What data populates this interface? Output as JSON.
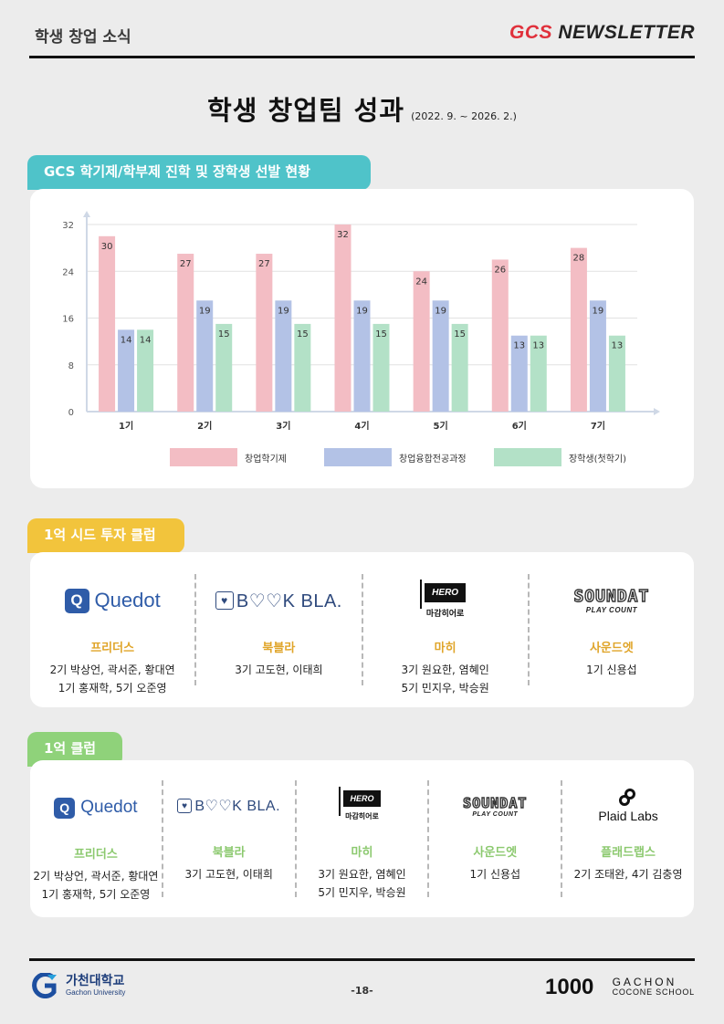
{
  "header": {
    "section": "학생 창업 소식",
    "newsletter_accent": "GCS",
    "newsletter_rest": " NEWSLETTER"
  },
  "title": {
    "main": "학생 창업팀 성과",
    "period": "(2022. 9. ~ 2026. 2.)"
  },
  "chart_section": {
    "label": "GCS 학기제/학부제 진학 및 장학생 선발 현황"
  },
  "chart_data": {
    "type": "bar",
    "categories": [
      "1기",
      "2기",
      "3기",
      "4기",
      "5기",
      "6기",
      "7기"
    ],
    "series": [
      {
        "name": "창업학기제",
        "color": "#f3bdc4",
        "values": [
          30,
          27,
          27,
          32,
          24,
          26,
          28
        ]
      },
      {
        "name": "창업융합전공과정",
        "color": "#b3c2e6",
        "values": [
          14,
          19,
          19,
          19,
          19,
          13,
          19
        ]
      },
      {
        "name": "장학생(첫학기)",
        "color": "#b3e1c7",
        "values": [
          14,
          15,
          15,
          15,
          15,
          13,
          13
        ]
      }
    ],
    "yticks": [
      0,
      8,
      16,
      24,
      32
    ],
    "ylim": [
      0,
      32
    ],
    "grid": true,
    "legend": "bottom"
  },
  "seed_club": {
    "label": "1억 시드 투자 클럽",
    "items": [
      {
        "logo": "Quedot",
        "name": "프리더스",
        "members": [
          "2기 박상언, 곽서준, 황대연",
          "1기 홍재학, 5기 오준영"
        ]
      },
      {
        "logo": "B♡♡K BLA.",
        "name": "북블라",
        "members": [
          "3기 고도현, 이태희"
        ]
      },
      {
        "logo": "HERO",
        "logo_sub": "마감히어로",
        "name": "마히",
        "members": [
          "3기 원요한, 염혜인",
          "5기 민지우, 박승원"
        ]
      },
      {
        "logo": "SOUNDAT",
        "logo_sub": "PLAY COUNT",
        "name": "사운드엣",
        "members": [
          "1기 신용섭"
        ]
      }
    ]
  },
  "club": {
    "label": "1억 클럽",
    "items": [
      {
        "logo": "Quedot",
        "name": "프리더스",
        "members": [
          "2기 박상언, 곽서준, 황대연",
          "1기 홍재학, 5기 오준영"
        ]
      },
      {
        "logo": "B♡♡K BLA.",
        "name": "북블라",
        "members": [
          "3기 고도현, 이태희"
        ]
      },
      {
        "logo": "HERO",
        "logo_sub": "마감히어로",
        "name": "마히",
        "members": [
          "3기 원요한, 염혜인",
          "5기 민지우, 박승원"
        ]
      },
      {
        "logo": "SOUNDAT",
        "logo_sub": "PLAY COUNT",
        "name": "사운드엣",
        "members": [
          "1기 신용섭"
        ]
      },
      {
        "logo": "Plaid Labs",
        "name": "플래드랩스",
        "members": [
          "2기 조태완, 4기 김충영"
        ]
      }
    ]
  },
  "footer": {
    "university_ko": "가천대학교",
    "university_en": "Gachon University",
    "page": "-18-",
    "cocone_mark": "1000",
    "cocone_line1": "GACHON",
    "cocone_line2": "COCONE SCHOOL"
  }
}
